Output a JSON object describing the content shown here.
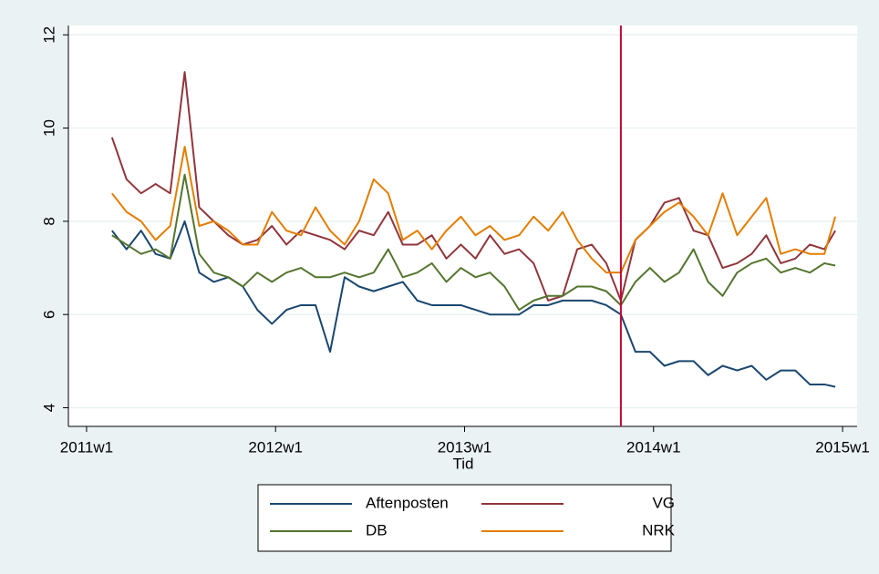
{
  "chart_data": {
    "type": "line",
    "x_label": "Tid",
    "x": [
      2659,
      2663,
      2667,
      2671,
      2675,
      2679,
      2683,
      2687,
      2691,
      2695,
      2699,
      2703,
      2707,
      2711,
      2715,
      2719,
      2723,
      2727,
      2731,
      2735,
      2739,
      2743,
      2747,
      2751,
      2755,
      2759,
      2763,
      2767,
      2771,
      2775,
      2779,
      2783,
      2787,
      2791,
      2795,
      2799,
      2803,
      2807,
      2811,
      2815,
      2819,
      2823,
      2827,
      2831,
      2835,
      2839,
      2843,
      2847,
      2851,
      2855,
      2858
    ],
    "series": [
      {
        "name": "Aftenposten",
        "color": "#1a476f",
        "values": [
          7.8,
          7.4,
          7.8,
          7.3,
          7.2,
          8.0,
          6.9,
          6.7,
          6.8,
          6.6,
          6.1,
          5.8,
          6.1,
          6.2,
          6.2,
          5.2,
          6.8,
          6.6,
          6.5,
          6.6,
          6.7,
          6.3,
          6.2,
          6.2,
          6.2,
          6.1,
          6.0,
          6.0,
          6.0,
          6.2,
          6.2,
          6.3,
          6.3,
          6.3,
          6.2,
          6.0,
          5.2,
          5.2,
          4.9,
          5.0,
          5.0,
          4.7,
          4.9,
          4.8,
          4.9,
          4.6,
          4.8,
          4.8,
          4.5,
          4.5,
          4.45
        ]
      },
      {
        "name": "VG",
        "color": "#90353b",
        "values": [
          9.8,
          8.9,
          8.6,
          8.8,
          8.6,
          11.2,
          8.3,
          8.0,
          7.7,
          7.5,
          7.6,
          7.9,
          7.5,
          7.8,
          7.7,
          7.6,
          7.4,
          7.8,
          7.7,
          8.2,
          7.5,
          7.5,
          7.7,
          7.2,
          7.5,
          7.2,
          7.7,
          7.3,
          7.4,
          7.1,
          6.3,
          6.4,
          7.4,
          7.5,
          7.1,
          6.3,
          7.6,
          7.9,
          8.4,
          8.5,
          7.8,
          7.7,
          7.0,
          7.1,
          7.3,
          7.7,
          7.1,
          7.2,
          7.5,
          7.4,
          7.8
        ]
      },
      {
        "name": "DB",
        "color": "#55752f",
        "values": [
          7.7,
          7.5,
          7.3,
          7.4,
          7.2,
          9.0,
          7.3,
          6.9,
          6.8,
          6.6,
          6.9,
          6.7,
          6.9,
          7.0,
          6.8,
          6.8,
          6.9,
          6.8,
          6.9,
          7.4,
          6.8,
          6.9,
          7.1,
          6.7,
          7.0,
          6.8,
          6.9,
          6.6,
          6.1,
          6.3,
          6.4,
          6.4,
          6.6,
          6.6,
          6.5,
          6.2,
          6.7,
          7.0,
          6.7,
          6.9,
          7.4,
          6.7,
          6.4,
          6.9,
          7.1,
          7.2,
          6.9,
          7.0,
          6.9,
          7.1,
          7.05
        ]
      },
      {
        "name": "NRK",
        "color": "#e37e00",
        "values": [
          8.6,
          8.2,
          8.0,
          7.6,
          7.9,
          9.6,
          7.9,
          8.0,
          7.8,
          7.5,
          7.5,
          8.2,
          7.8,
          7.7,
          8.3,
          7.8,
          7.5,
          8.0,
          8.9,
          8.6,
          7.6,
          7.8,
          7.4,
          7.8,
          8.1,
          7.7,
          7.9,
          7.6,
          7.7,
          8.1,
          7.8,
          8.2,
          7.6,
          7.2,
          6.9,
          6.9,
          7.6,
          7.9,
          8.2,
          8.4,
          8.1,
          7.7,
          8.6,
          7.7,
          8.1,
          8.5,
          7.3,
          7.4,
          7.3,
          7.3,
          8.1
        ]
      }
    ],
    "xlim": [
      2647,
      2864
    ],
    "xticks": [
      {
        "value": 2652,
        "label": "2011w1"
      },
      {
        "value": 2704,
        "label": "2012w1"
      },
      {
        "value": 2756,
        "label": "2013w1"
      },
      {
        "value": 2808,
        "label": "2014w1"
      },
      {
        "value": 2860,
        "label": "2015w1"
      }
    ],
    "ylim": [
      3.6,
      12.2
    ],
    "yticks": [
      4,
      6,
      8,
      10,
      12
    ],
    "grid": true,
    "vline": 2799,
    "vline_color": "#c10534",
    "legend_position": "bottom"
  }
}
